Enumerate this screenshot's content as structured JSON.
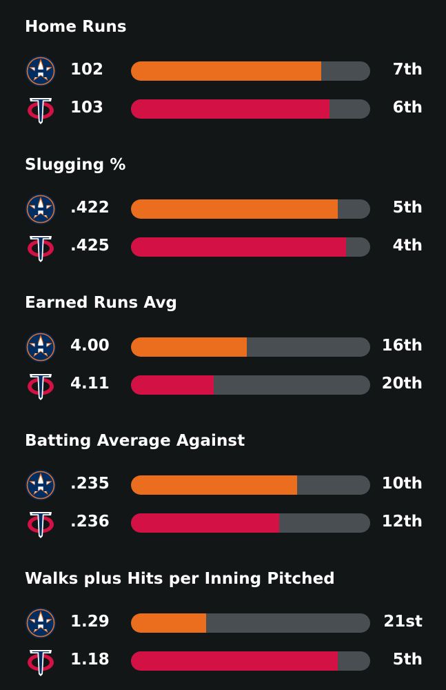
{
  "colors": {
    "background": "#131617",
    "track": "#494e53",
    "astros": "#eb6e1f",
    "twins": "#d31145"
  },
  "teams": [
    {
      "key": "astros",
      "logo_icon": "houston-astros-logo-icon"
    },
    {
      "key": "twins",
      "logo_icon": "minnesota-twins-logo-icon"
    }
  ],
  "stats": [
    {
      "title": "Home Runs",
      "rows": [
        {
          "team": "astros",
          "value": "102",
          "rank": "7th",
          "fill": 0.795
        },
        {
          "team": "twins",
          "value": "103",
          "rank": "6th",
          "fill": 0.83
        }
      ]
    },
    {
      "title": "Slugging %",
      "rows": [
        {
          "team": "astros",
          "value": ".422",
          "rank": "5th",
          "fill": 0.865
        },
        {
          "team": "twins",
          "value": ".425",
          "rank": "4th",
          "fill": 0.9
        }
      ]
    },
    {
      "title": "Earned Runs Avg",
      "rows": [
        {
          "team": "astros",
          "value": "4.00",
          "rank": "16th",
          "fill": 0.485
        },
        {
          "team": "twins",
          "value": "4.11",
          "rank": "20th",
          "fill": 0.345
        }
      ]
    },
    {
      "title": "Batting Average Against",
      "rows": [
        {
          "team": "astros",
          "value": ".235",
          "rank": "10th",
          "fill": 0.695
        },
        {
          "team": "twins",
          "value": ".236",
          "rank": "12th",
          "fill": 0.62
        }
      ]
    },
    {
      "title": "Walks plus Hits per Inning Pitched",
      "rows": [
        {
          "team": "astros",
          "value": "1.29",
          "rank": "21st",
          "fill": 0.315
        },
        {
          "team": "twins",
          "value": "1.18",
          "rank": "5th",
          "fill": 0.865
        }
      ]
    }
  ]
}
